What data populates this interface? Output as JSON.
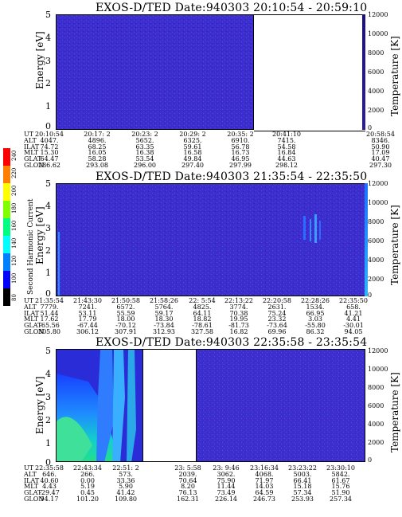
{
  "panels": [
    {
      "title": "EXOS-D/TED   Date:940303  20:10:54 - 20:59:10",
      "ylabel": "Energy [eV]",
      "rlabel": "Temperature [K]",
      "yticks": [
        "5",
        "4",
        "3",
        "2",
        "1",
        "0"
      ],
      "cbticks": [
        "12000",
        "10000",
        "8000",
        "6000",
        "4000",
        "2000",
        "0"
      ],
      "rows": [
        {
          "label": "UT",
          "values": [
            "20:10:54",
            "20:17: 2",
            "20:23: 2",
            "20:29: 2",
            "20:35: 2",
            "20:41:10",
            "20:58:54"
          ]
        },
        {
          "label": "ALT",
          "values": [
            "4047.",
            "4896.",
            "5652.",
            "6325.",
            "6910.",
            "7415.",
            "8346."
          ]
        },
        {
          "label": "ILAT",
          "values": [
            "74.72",
            "68.25",
            "63.35",
            "59.61",
            "56.78",
            "54.58",
            "50.90"
          ]
        },
        {
          "label": "MLT",
          "values": [
            "15.30",
            "16.05",
            "16.38",
            "16.58",
            "16.73",
            "16.84",
            "17.09"
          ]
        },
        {
          "label": "GLAT",
          "values": [
            "64.47",
            "58.28",
            "53.54",
            "49.84",
            "46.95",
            "44.63",
            "40.47"
          ]
        },
        {
          "label": "GLON",
          "values": [
            "286.62",
            "293.08",
            "296.00",
            "297.40",
            "297.99",
            "298.12",
            "297.30"
          ]
        }
      ]
    },
    {
      "title": "EXOS-D/TED   Date:940303  21:35:54 - 22:35:50",
      "ylabel": "Energy [eV]",
      "rlabel": "Temperature [K]",
      "yticks": [
        "5",
        "4",
        "3",
        "2",
        "1",
        "0"
      ],
      "cbticks": [
        "12000",
        "10000",
        "8000",
        "6000",
        "4000",
        "2000",
        "0"
      ],
      "rows": [
        {
          "label": "UT",
          "values": [
            "21:35:54",
            "21:43:30",
            "21:50:58",
            "21:58:26",
            "22: 5:54",
            "22:13:22",
            "22:20:58",
            "22:28:26",
            "22:35:50"
          ]
        },
        {
          "label": "ALT",
          "values": [
            "7779.",
            "7241.",
            "6572.",
            "5764.",
            "4825.",
            "3774.",
            "2631.",
            "1534.",
            "658."
          ]
        },
        {
          "label": "ILAT",
          "values": [
            "51.44",
            "53.11",
            "55.59",
            "59.17",
            "64.11",
            "70.38",
            "75.24",
            "66.95",
            "41.21"
          ]
        },
        {
          "label": "MLT",
          "values": [
            "17.62",
            "17.79",
            "18.00",
            "18.30",
            "18.82",
            "19.95",
            "23.32",
            "3.03",
            "4.41"
          ]
        },
        {
          "label": "GLAT",
          "values": [
            "-65.56",
            "-67.44",
            "-70.12",
            "-73.84",
            "-78.61",
            "-81.73",
            "-73.64",
            "-55.80",
            "-30.01"
          ]
        },
        {
          "label": "GLON",
          "values": [
            "305.80",
            "306.12",
            "307.91",
            "312.93",
            "327.58",
            "16.82",
            "69.96",
            "86.32",
            "94.05"
          ]
        }
      ]
    },
    {
      "title": "EXOS-D/TED   Date:940303  22:35:58 - 23:35:54",
      "ylabel": "Energy [eV]",
      "rlabel": "Temperature [K]",
      "yticks": [
        "5",
        "4",
        "3",
        "2",
        "1",
        "0"
      ],
      "cbticks": [
        "12000",
        "10000",
        "8000",
        "6000",
        "4000",
        "2000",
        "0"
      ],
      "rows": [
        {
          "label": "UT",
          "values": [
            "22:35:58",
            "22:43:34",
            "22:51: 2",
            "",
            "23: 5:58",
            "23: 9:46",
            "23:16:34",
            "23:23:22",
            "23:30:10"
          ]
        },
        {
          "label": "ALT",
          "values": [
            "646.",
            "266.",
            "573.",
            "",
            "2039.",
            "3062.",
            "4068.",
            "5003.",
            "5842."
          ]
        },
        {
          "label": "ILAT",
          "values": [
            "40.60",
            "0.00",
            "33.36",
            "",
            "70.64",
            "75.90",
            "71.97",
            "66.41",
            "61.67"
          ]
        },
        {
          "label": "MLT",
          "values": [
            "4.43",
            "5.19",
            "5.90",
            "",
            "8.20",
            "11.44",
            "14.03",
            "15.18",
            "15.76"
          ]
        },
        {
          "label": "GLAT",
          "values": [
            "-29.47",
            "0.45",
            "41.42",
            "",
            "76.13",
            "73.49",
            "64.59",
            "57.34",
            "51.90"
          ]
        },
        {
          "label": "GLON",
          "values": [
            "94.17",
            "101.20",
            "109.80",
            "",
            "162.31",
            "226.14",
            "246.73",
            "253.93",
            "257.34"
          ]
        }
      ]
    }
  ],
  "harmonic_scale": {
    "label": "Second Harmonic Current",
    "ticks": [
      "240",
      "220",
      "200",
      "180",
      "160",
      "140",
      "120",
      "100",
      "80"
    ],
    "colors": [
      "#ff0000",
      "#ff8000",
      "#ffff00",
      "#80ff00",
      "#00ff80",
      "#00ffff",
      "#0080ff",
      "#0000ff",
      "#000000"
    ]
  },
  "colors": {
    "background_plasma": "#3c2ccf",
    "colorbar_top": "#1a0080",
    "colorbar_bottom": "#ffffff"
  }
}
